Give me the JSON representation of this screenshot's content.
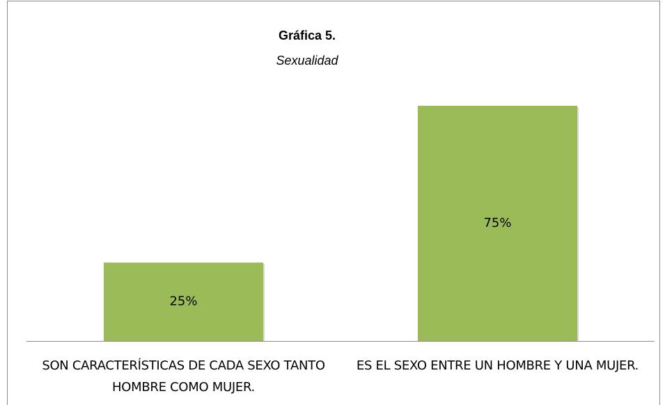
{
  "chart_data": {
    "type": "bar",
    "title": "Gráfica 5.",
    "subtitle": "Sexualidad",
    "categories": [
      "SON CARACTERÍSTICAS DE CADA SEXO TANTO HOMBRE COMO MUJER.",
      "ES EL SEXO ENTRE UN HOMBRE Y UNA MUJER."
    ],
    "values": [
      25,
      75
    ],
    "value_labels": [
      "25%",
      "75%"
    ],
    "color": "#9bbb59"
  }
}
